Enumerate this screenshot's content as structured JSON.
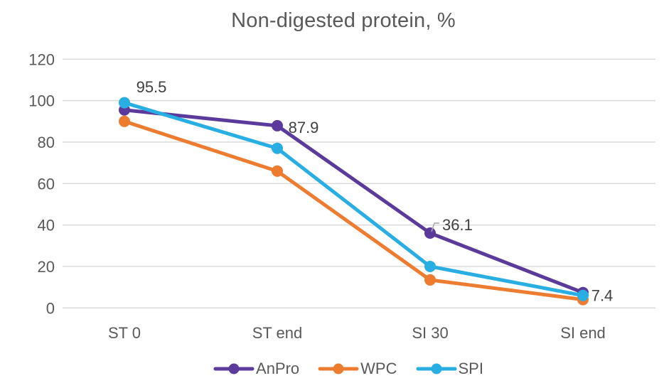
{
  "chart_data": {
    "type": "line",
    "title": "Non-digested protein, %",
    "categories": [
      "ST 0",
      "ST end",
      "SI 30",
      "SI end"
    ],
    "series": [
      {
        "name": "AnPro",
        "color": "#5B3A9B",
        "values": [
          95.5,
          87.9,
          36.1,
          7.4
        ]
      },
      {
        "name": "WPC",
        "color": "#EE7C30",
        "values": [
          90,
          66,
          13.5,
          4
        ]
      },
      {
        "name": "SPI",
        "color": "#29AEE3",
        "values": [
          99,
          77,
          20,
          6
        ]
      }
    ],
    "data_labels": [
      {
        "text": "95.5",
        "series": "AnPro",
        "category": "ST 0"
      },
      {
        "text": "87.9",
        "series": "AnPro",
        "category": "ST end"
      },
      {
        "text": "36.1",
        "series": "AnPro",
        "category": "SI 30",
        "leader_line": true
      },
      {
        "text": "7.4",
        "series": "AnPro",
        "category": "SI end"
      }
    ],
    "yticks": [
      0,
      20,
      40,
      60,
      80,
      100,
      120
    ],
    "ylim": [
      0,
      120
    ],
    "grid": true,
    "legend_position": "bottom",
    "marker": "circle",
    "colors": {
      "grid": "#D9D9D9",
      "title_text": "#595959",
      "axis_text": "#595959",
      "label_text": "#404040",
      "leader": "#A6A6A6",
      "background": "#FFFFFF"
    }
  }
}
